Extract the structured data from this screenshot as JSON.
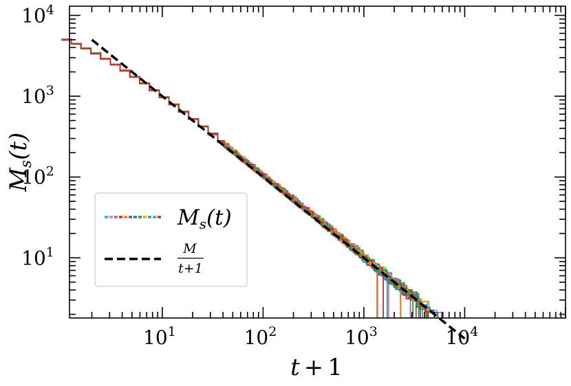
{
  "chart_data": {
    "type": "line",
    "x_scale": "log",
    "y_scale": "log",
    "xlabel": {
      "base": "t",
      "op": "+",
      "num": "1"
    },
    "ylabel": {
      "base": "M",
      "sub": "s",
      "arg": "(t)"
    },
    "xlim": [
      1.2,
      100000
    ],
    "ylim": [
      1.8,
      13000
    ],
    "x_ticks": [
      {
        "base": "10",
        "exp": "1",
        "value": 10
      },
      {
        "base": "10",
        "exp": "2",
        "value": 100
      },
      {
        "base": "10",
        "exp": "3",
        "value": 1000
      },
      {
        "base": "10",
        "exp": "4",
        "value": 10000
      }
    ],
    "y_ticks": [
      {
        "base": "10",
        "exp": "1",
        "value": 10
      },
      {
        "base": "10",
        "exp": "2",
        "value": 100
      },
      {
        "base": "10",
        "exp": "3",
        "value": 1000
      },
      {
        "base": "10",
        "exp": "4",
        "value": 10000
      }
    ],
    "grid": false,
    "legend_placement": "lower-left",
    "legend": [
      {
        "label_base": "M",
        "label_sub": "s",
        "label_arg": "(t)",
        "style": "multicolor-dashed"
      },
      {
        "label_num": "M",
        "label_den": "t+1",
        "style": "black-dashed"
      }
    ],
    "reference_line": {
      "name": "M/(t+1)",
      "M": 10000,
      "x_range": [
        1,
        10000
      ],
      "color": "#000000",
      "dash": "dashed"
    },
    "ensemble": {
      "count": 24,
      "M": 10000,
      "floor": 1,
      "note": "stochastic realisations of M_s(t), each following M/(t+1) then dropping to a floor of 1 at the end time"
    },
    "series_colors": [
      "#1f77b4",
      "#ff7f0e",
      "#2ca02c",
      "#d62728",
      "#9467bd",
      "#8c564b",
      "#e377c2",
      "#7f7f7f",
      "#bcbd22",
      "#17becf"
    ]
  }
}
